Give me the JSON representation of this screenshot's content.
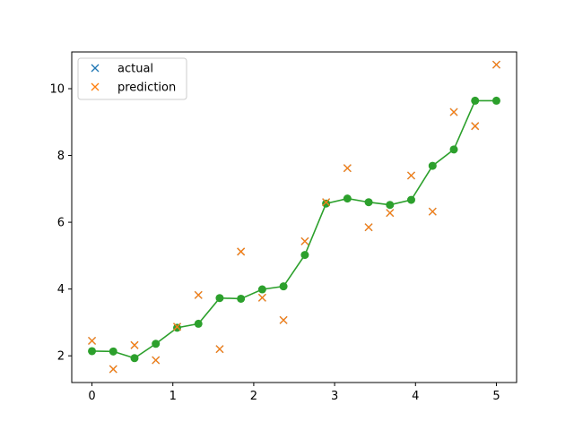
{
  "chart_data": {
    "type": "line",
    "title": "",
    "xlabel": "",
    "ylabel": "",
    "xlim": [
      -0.25,
      5.25
    ],
    "ylim": [
      1.2,
      11.1
    ],
    "grid": false,
    "legend_placement": "top-left",
    "x_ticks": [
      0,
      1,
      2,
      3,
      4,
      5
    ],
    "y_ticks": [
      2,
      4,
      6,
      8,
      10
    ],
    "series": [
      {
        "name": "actual",
        "marker": "x",
        "color": "#1f77b4",
        "x": [
          0.0,
          0.263,
          0.526,
          0.789,
          1.053,
          1.316,
          1.579,
          1.842,
          2.105,
          2.368,
          2.632,
          2.895,
          3.158,
          3.421,
          3.684,
          3.947,
          4.211,
          4.474,
          4.737,
          5.0
        ],
        "y": [
          2.45,
          1.6,
          2.32,
          1.87,
          2.87,
          3.82,
          2.2,
          5.12,
          3.74,
          3.07,
          5.43,
          6.6,
          7.62,
          5.85,
          6.28,
          7.4,
          6.32,
          9.3,
          8.88,
          10.72
        ]
      },
      {
        "name": "prediction",
        "marker": "x",
        "color": "#ff7f0e",
        "x": [
          0.0,
          0.263,
          0.526,
          0.789,
          1.053,
          1.316,
          1.579,
          1.842,
          2.105,
          2.368,
          2.632,
          2.895,
          3.158,
          3.421,
          3.684,
          3.947,
          4.211,
          4.474,
          4.737,
          5.0
        ],
        "y": [
          2.45,
          1.6,
          2.32,
          1.87,
          2.87,
          3.82,
          2.2,
          5.12,
          3.74,
          3.07,
          5.43,
          6.6,
          7.62,
          5.85,
          6.28,
          7.4,
          6.32,
          9.3,
          8.88,
          10.72
        ]
      },
      {
        "name": "",
        "marker": "o-line",
        "color": "#2ca02c",
        "x": [
          0.0,
          0.263,
          0.526,
          0.789,
          1.053,
          1.316,
          1.579,
          1.842,
          2.105,
          2.368,
          2.632,
          2.895,
          3.158,
          3.421,
          3.684,
          3.947,
          4.211,
          4.474,
          4.737,
          5.0
        ],
        "y": [
          2.14,
          2.13,
          1.93,
          2.36,
          2.84,
          2.96,
          3.73,
          3.71,
          3.99,
          4.08,
          5.02,
          6.56,
          6.71,
          6.6,
          6.52,
          6.67,
          7.69,
          8.18,
          9.64,
          9.64
        ]
      }
    ]
  }
}
